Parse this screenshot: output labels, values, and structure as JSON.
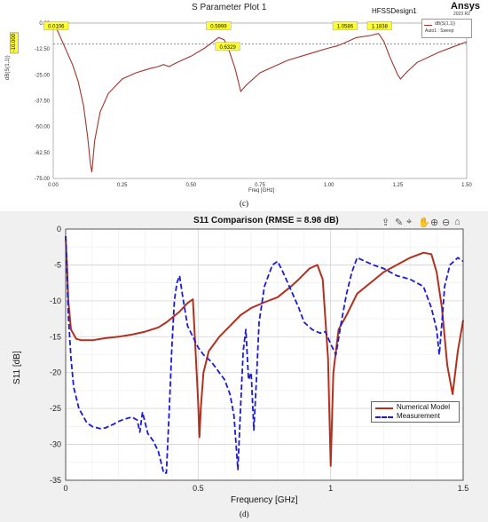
{
  "panel_c": {
    "window_title": "S Parameter Plot 1",
    "project_name": "HFSSDesign1",
    "brand": "Ansys",
    "brand_version": "2023 R2",
    "legend_title": "dB(S(1,1))",
    "legend_entry": "Auto1 : Sweep",
    "caption": "(c)",
    "line_color": "#a0332a",
    "threshold_value": "-10.000"
  },
  "panel_d": {
    "caption": "(d)",
    "toolbar_icons": [
      "export-icon",
      "brush-icon",
      "data-tip-icon",
      "pan-icon",
      "zoom-in-icon",
      "zoom-out-icon",
      "home-icon"
    ]
  },
  "chart_data": [
    {
      "type": "line",
      "xlabel": "Freq [GHz]",
      "ylabel": "dB(S(1,1))",
      "xlim": [
        0,
        1.5
      ],
      "ylim": [
        -75,
        0
      ],
      "x_ticks": [
        "0.00",
        "0.25",
        "0.50",
        "0.75",
        "1.00",
        "1.25",
        "1.50"
      ],
      "y_ticks": [
        "0.00",
        "-12.50",
        "-25.00",
        "-37.50",
        "-50.00",
        "-62.50",
        "-75.00"
      ],
      "grid": true,
      "threshold_line": -10,
      "markers": [
        {
          "label": "0.0106",
          "x": 0.0106,
          "y": -1.5
        },
        {
          "label": "0.5999",
          "x": 0.5999,
          "y": -1.5
        },
        {
          "label": "0.6329",
          "x": 0.6329,
          "y": -11.5
        },
        {
          "label": "1.0586",
          "x": 1.0586,
          "y": -1.5
        },
        {
          "label": "1.1838",
          "x": 1.1838,
          "y": -1.5
        }
      ],
      "series": [
        {
          "x": [
            0,
            0.01,
            0.03,
            0.05,
            0.07,
            0.09,
            0.11,
            0.125,
            0.135,
            0.14,
            0.15,
            0.17,
            0.2,
            0.25,
            0.3,
            0.35,
            0.38,
            0.4,
            0.42,
            0.45,
            0.5,
            0.55,
            0.58,
            0.6,
            0.62,
            0.64,
            0.66,
            0.68,
            0.7,
            0.75,
            0.8,
            0.85,
            0.9,
            0.95,
            1.0,
            1.03,
            1.05,
            1.1,
            1.15,
            1.18,
            1.2,
            1.22,
            1.25,
            1.26,
            1.28,
            1.32,
            1.4,
            1.5
          ],
          "y": [
            0,
            -2,
            -8,
            -14,
            -20,
            -28,
            -40,
            -55,
            -68,
            -72,
            -57,
            -43,
            -34,
            -27,
            -24,
            -22,
            -21,
            -20,
            -21,
            -19,
            -16,
            -12,
            -9,
            -7,
            -8,
            -14,
            -22,
            -33,
            -30,
            -24,
            -21,
            -18,
            -16,
            -14,
            -12,
            -11,
            -10,
            -7,
            -6,
            -5,
            -9,
            -16,
            -25,
            -27,
            -24,
            -19,
            -14,
            -9
          ]
        }
      ]
    },
    {
      "type": "line",
      "title": "S11 Comparison (RMSE = 8.98 dB)",
      "xlabel": "Frequency [GHz]",
      "ylabel": "S11 [dB]",
      "xlim": [
        0,
        1.5
      ],
      "ylim": [
        -35,
        0
      ],
      "x_ticks": [
        "0",
        "0.5",
        "1",
        "1.5"
      ],
      "y_ticks": [
        "0",
        "-5",
        "-10",
        "-15",
        "-20",
        "-25",
        "-30",
        "-35"
      ],
      "grid": true,
      "legend_position": "bottom-right",
      "series": [
        {
          "name": "Numerical Model",
          "color": "#b2301e",
          "style": "solid",
          "x": [
            0,
            0.005,
            0.01,
            0.02,
            0.04,
            0.06,
            0.1,
            0.15,
            0.2,
            0.25,
            0.3,
            0.35,
            0.38,
            0.4,
            0.43,
            0.46,
            0.48,
            0.5,
            0.505,
            0.51,
            0.52,
            0.54,
            0.58,
            0.62,
            0.66,
            0.7,
            0.75,
            0.8,
            0.85,
            0.88,
            0.92,
            0.95,
            0.97,
            0.99,
            1.0,
            1.01,
            1.03,
            1.06,
            1.1,
            1.15,
            1.2,
            1.25,
            1.3,
            1.35,
            1.38,
            1.4,
            1.42,
            1.44,
            1.46,
            1.48,
            1.5
          ],
          "y": [
            -1,
            -5,
            -10,
            -14,
            -15.3,
            -15.5,
            -15.5,
            -15.2,
            -15,
            -14.7,
            -14.3,
            -13.7,
            -13,
            -12.4,
            -11.5,
            -10.3,
            -9.8,
            -24,
            -29,
            -25,
            -20,
            -17,
            -15,
            -13.5,
            -12,
            -11,
            -10.2,
            -9.5,
            -8,
            -7,
            -5.5,
            -5,
            -7,
            -18,
            -33,
            -20,
            -14,
            -12,
            -9,
            -7.5,
            -6,
            -5,
            -4,
            -3.3,
            -3.5,
            -6,
            -11,
            -19,
            -23,
            -17,
            -12.7
          ]
        },
        {
          "name": "Measurement",
          "color": "#1a1ad8",
          "style": "dashed",
          "x": [
            0,
            0.005,
            0.01,
            0.02,
            0.03,
            0.05,
            0.08,
            0.1,
            0.13,
            0.15,
            0.18,
            0.2,
            0.22,
            0.25,
            0.27,
            0.28,
            0.29,
            0.3,
            0.31,
            0.33,
            0.35,
            0.37,
            0.38,
            0.39,
            0.4,
            0.41,
            0.42,
            0.43,
            0.44,
            0.46,
            0.48,
            0.5,
            0.52,
            0.55,
            0.58,
            0.6,
            0.62,
            0.635,
            0.65,
            0.66,
            0.67,
            0.68,
            0.69,
            0.7,
            0.71,
            0.72,
            0.73,
            0.75,
            0.78,
            0.8,
            0.82,
            0.85,
            0.88,
            0.9,
            0.93,
            0.96,
            0.98,
            1.0,
            1.02,
            1.04,
            1.06,
            1.08,
            1.1,
            1.13,
            1.16,
            1.2,
            1.25,
            1.3,
            1.35,
            1.38,
            1.4,
            1.41,
            1.42,
            1.43,
            1.45,
            1.48,
            1.5
          ],
          "y": [
            -1,
            -6,
            -12,
            -18,
            -22,
            -25,
            -27,
            -27.5,
            -27.8,
            -27.7,
            -27.2,
            -26.8,
            -26.5,
            -26.2,
            -26.6,
            -28.3,
            -25.5,
            -27,
            -28.5,
            -29.5,
            -31,
            -34,
            -34,
            -26,
            -17,
            -10,
            -7.5,
            -6.5,
            -9,
            -13.5,
            -15,
            -16.5,
            -17.5,
            -18.5,
            -20,
            -21,
            -23,
            -26,
            -33.5,
            -25,
            -17,
            -14,
            -21,
            -20,
            -28,
            -21,
            -13,
            -8,
            -5,
            -4.5,
            -6,
            -8.5,
            -11,
            -13,
            -14,
            -14.5,
            -14.3,
            -16,
            -17.5,
            -13,
            -9,
            -6,
            -4,
            -4.5,
            -5,
            -5.5,
            -6.5,
            -7,
            -8,
            -11,
            -14,
            -17.5,
            -13,
            -8,
            -5,
            -4,
            -4.5
          ]
        }
      ]
    }
  ]
}
